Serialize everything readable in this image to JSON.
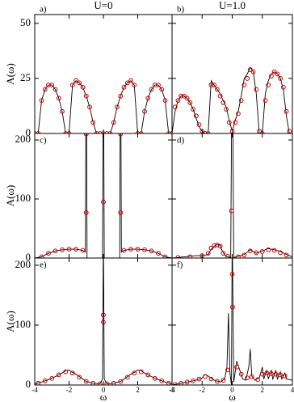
{
  "chart_data": [
    {
      "type": "line",
      "header": "U=0",
      "title": "a)",
      "ylabel": "A(ω)",
      "xlim": [
        -4,
        4
      ],
      "xticks": [
        -4,
        -2,
        0,
        2,
        4
      ],
      "ylim": [
        0,
        54
      ],
      "yticks": [
        0,
        25,
        50
      ],
      "series": [
        {
          "style": "line",
          "color": "#000000",
          "x": [
            -4,
            -3.8,
            -3.6,
            -3.4,
            -3.2,
            -3.0,
            -2.8,
            -2.6,
            -2.4,
            -2.2,
            -2.0,
            -1.8,
            -1.6,
            -1.4,
            -1.2,
            -1.0,
            -0.8,
            -0.6,
            -0.4,
            -0.2,
            0,
            0.2,
            0.4,
            0.6,
            0.8,
            1.0,
            1.2,
            1.4,
            1.6,
            1.8,
            2.0,
            2.2,
            2.4,
            2.6,
            2.8,
            3.0,
            3.2,
            3.4,
            3.6,
            3.8,
            4
          ],
          "values": [
            0,
            0,
            15,
            20,
            22,
            22,
            20,
            16,
            10,
            0,
            0,
            22,
            24,
            23,
            21,
            17,
            12,
            5,
            0,
            0,
            0,
            0,
            0,
            5,
            12,
            17,
            21,
            23,
            24,
            22,
            0,
            0,
            10,
            16,
            20,
            22,
            22,
            20,
            15,
            0,
            0
          ]
        },
        {
          "style": "markers",
          "color": "#cc0000",
          "x": [
            -4,
            -3.8,
            -3.6,
            -3.4,
            -3.2,
            -3.0,
            -2.8,
            -2.6,
            -2.4,
            -2.2,
            -2.0,
            -1.8,
            -1.6,
            -1.4,
            -1.2,
            -1.0,
            -0.8,
            -0.6,
            -0.4,
            -0.2,
            0,
            0.2,
            0.4,
            0.6,
            0.8,
            1.0,
            1.2,
            1.4,
            1.6,
            1.8,
            2.0,
            2.2,
            2.4,
            2.6,
            2.8,
            3.0,
            3.2,
            3.4,
            3.6,
            3.8,
            4
          ],
          "values": [
            0,
            0,
            15,
            20,
            22,
            22,
            20,
            16,
            10,
            0,
            0,
            22,
            24,
            23,
            21,
            17,
            12,
            5,
            0,
            0,
            0,
            0,
            0,
            5,
            12,
            17,
            21,
            23,
            24,
            22,
            0,
            0,
            10,
            16,
            20,
            22,
            22,
            20,
            15,
            0,
            0
          ]
        }
      ]
    },
    {
      "type": "line",
      "header": "U=1.0",
      "title": "b)",
      "xlim": [
        -4,
        4
      ],
      "xticks": [
        -4,
        -2,
        0,
        2,
        4
      ],
      "ylim": [
        0,
        54
      ],
      "yticks": [
        0,
        25,
        50
      ],
      "series": [
        {
          "style": "line",
          "color": "#000000",
          "x": [
            -4,
            -3.8,
            -3.6,
            -3.4,
            -3.2,
            -3.0,
            -2.8,
            -2.6,
            -2.4,
            -2.2,
            -2.0,
            -1.8,
            -1.6,
            -1.4,
            -1.2,
            -1.0,
            -0.8,
            -0.6,
            -0.4,
            -0.2,
            0,
            0.2,
            0.4,
            0.6,
            0.8,
            1.0,
            1.2,
            1.4,
            1.6,
            1.8,
            2.0,
            2.2,
            2.4,
            2.6,
            2.8,
            3.0,
            3.2,
            3.4,
            3.6,
            3.8,
            4
          ],
          "values": [
            0,
            10,
            15,
            17,
            17,
            16,
            14,
            11,
            7,
            3,
            1,
            0,
            0,
            24,
            22,
            20,
            18,
            15,
            12,
            6,
            1,
            6,
            10,
            17,
            25,
            27,
            30,
            28,
            18,
            0,
            0,
            18,
            24,
            27,
            28,
            27,
            25,
            20,
            8,
            0,
            0
          ]
        },
        {
          "style": "markers",
          "color": "#cc0000",
          "x": [
            -3.8,
            -3.6,
            -3.4,
            -3.2,
            -3.0,
            -2.8,
            -2.6,
            -2.4,
            -2.2,
            -2.0,
            -1.8,
            -1.6,
            -1.4,
            -1.2,
            -1.0,
            -0.8,
            -0.6,
            -0.4,
            -0.2,
            0,
            0.2,
            0.4,
            0.6,
            0.8,
            1.0,
            1.2,
            1.4,
            1.6,
            1.8,
            2.0,
            2.2,
            2.4,
            2.6,
            2.8,
            3.0,
            3.2,
            3.4,
            3.6,
            3.8
          ],
          "values": [
            12,
            15,
            17,
            17,
            16,
            14,
            11,
            8,
            4,
            1,
            0,
            0,
            22,
            22,
            20,
            17,
            14,
            11,
            5,
            1,
            5,
            9,
            15,
            22,
            25,
            29,
            28,
            20,
            1,
            0,
            15,
            22,
            26,
            28,
            27,
            25,
            21,
            10,
            1
          ]
        }
      ]
    },
    {
      "type": "line",
      "title": "c)",
      "ylabel": "A(ω)",
      "xlim": [
        -4,
        4
      ],
      "xticks": [
        -4,
        -2,
        0,
        2,
        4
      ],
      "ylim": [
        0,
        211
      ],
      "yticks": [
        0,
        100,
        200
      ],
      "series": [
        {
          "style": "line",
          "color": "#000000",
          "x": [
            -4,
            -3.6,
            -3.2,
            -2.8,
            -2.4,
            -2.0,
            -1.6,
            -1.2,
            -1.05,
            -1.0,
            -0.95,
            -0.05,
            0,
            0.05,
            0.95,
            1.0,
            1.05,
            1.2,
            1.6,
            2.0,
            2.4,
            2.8,
            3.2,
            3.6,
            4
          ],
          "values": [
            0,
            2,
            8,
            12,
            14,
            15,
            15,
            13,
            10,
            400,
            0,
            0,
            400,
            0,
            0,
            400,
            10,
            13,
            15,
            15,
            14,
            12,
            8,
            2,
            0
          ]
        },
        {
          "style": "markers",
          "color": "#cc0000",
          "x": [
            -3.6,
            -3.2,
            -2.8,
            -2.4,
            -2.0,
            -1.6,
            -1.2,
            -1,
            -1,
            0,
            1,
            1,
            1.2,
            1.6,
            2.0,
            2.4,
            2.8,
            3.2,
            3.6
          ],
          "values": [
            2,
            8,
            12,
            14,
            15,
            15,
            13,
            210,
            77,
            95,
            210,
            77,
            13,
            15,
            15,
            14,
            12,
            8,
            2
          ]
        }
      ]
    },
    {
      "type": "line",
      "title": "d)",
      "xlim": [
        -4,
        4
      ],
      "xticks": [
        -4,
        -2,
        0,
        2,
        4
      ],
      "ylim": [
        0,
        211
      ],
      "yticks": [
        0,
        100,
        200
      ],
      "series": [
        {
          "style": "line",
          "color": "#000000",
          "x": [
            -4,
            -3.6,
            -3.2,
            -2.8,
            -2.4,
            -2.0,
            -1.6,
            -1.4,
            -1.2,
            -1.0,
            -0.8,
            -0.7,
            -0.5,
            -0.3,
            -0.1,
            0,
            0.1,
            0.4,
            0.8,
            1.0,
            1.2,
            1.4,
            1.6,
            2.0,
            2.4,
            2.8,
            3.2,
            3.6,
            4
          ],
          "values": [
            0,
            1,
            2,
            3,
            4,
            4,
            6,
            15,
            20,
            23,
            22,
            14,
            5,
            2,
            1,
            400,
            1,
            3,
            6,
            10,
            14,
            11,
            8,
            12,
            16,
            14,
            11,
            6,
            2
          ]
        },
        {
          "style": "markers",
          "color": "#cc0000",
          "x": [
            -3.6,
            -2.8,
            -2.0,
            -1.6,
            -1.4,
            -1.2,
            -1.0,
            -0.8,
            -0.6,
            -0.3,
            -0.05,
            0.4,
            0.8,
            1.2,
            1.6,
            2.0,
            2.4,
            2.8,
            3.2,
            3.6
          ],
          "values": [
            1,
            2,
            4,
            8,
            17,
            21,
            22,
            20,
            8,
            3,
            80,
            2,
            5,
            12,
            9,
            11,
            14,
            13,
            9,
            5
          ]
        }
      ]
    },
    {
      "type": "line",
      "title": "e)",
      "ylabel": "A(ω)",
      "xlabel": "ω",
      "xlim": [
        -4,
        4
      ],
      "xticks": [
        -4,
        -2,
        0,
        2,
        4
      ],
      "ylim": [
        0,
        212
      ],
      "yticks": [
        0,
        100,
        200
      ],
      "series": [
        {
          "style": "line",
          "color": "#000000",
          "x": [
            -4,
            -3.6,
            -3.2,
            -2.8,
            -2.4,
            -2.2,
            -2.0,
            -1.8,
            -1.6,
            -1.4,
            -1.2,
            -1.0,
            -0.6,
            -0.2,
            -0.05,
            0,
            0.05,
            0.2,
            0.6,
            1.0,
            1.2,
            1.4,
            1.6,
            1.8,
            2.0,
            2.2,
            2.4,
            2.8,
            3.2,
            3.6,
            4
          ],
          "values": [
            2,
            5,
            9,
            14,
            20,
            24,
            25,
            21,
            18,
            14,
            10,
            6,
            3,
            2,
            10,
            260,
            10,
            2,
            3,
            6,
            10,
            14,
            18,
            21,
            25,
            24,
            20,
            14,
            9,
            5,
            2
          ]
        },
        {
          "style": "markers",
          "color": "#cc0000",
          "x": [
            -3.8,
            -3.4,
            -3.0,
            -2.6,
            -2.2,
            -1.8,
            -1.4,
            -1.0,
            -0.6,
            -0.2,
            0,
            0,
            0.2,
            0.6,
            1.0,
            1.4,
            1.8,
            2.2,
            2.6,
            3.0,
            3.4,
            3.8
          ],
          "values": [
            3,
            7,
            11,
            17,
            22,
            20,
            13,
            6,
            3,
            2,
            117,
            105,
            2,
            3,
            6,
            13,
            20,
            22,
            17,
            11,
            7,
            3
          ]
        }
      ]
    },
    {
      "type": "line",
      "title": "f)",
      "xlabel": "ω",
      "xlim": [
        -4,
        4
      ],
      "xticks": [
        -4,
        -2,
        0,
        2,
        4
      ],
      "ylim": [
        0,
        212
      ],
      "yticks": [
        0,
        100,
        200
      ],
      "series": [
        {
          "style": "line",
          "color": "#000000",
          "x": [
            -4,
            -3.6,
            -3.2,
            -2.8,
            -2.4,
            -2.0,
            -1.8,
            -1.6,
            -1.2,
            -0.8,
            -0.5,
            -0.35,
            -0.25,
            -0.15,
            -0.05,
            0,
            0.1,
            0.3,
            0.5,
            0.7,
            0.9,
            1.1,
            1.2,
            1.3,
            1.5,
            1.8,
            2.0,
            2.1,
            2.3,
            2.4,
            2.6,
            2.7,
            2.9,
            3.0,
            3.2,
            3.3,
            3.5,
            3.6,
            4
          ],
          "values": [
            0,
            2,
            4,
            6,
            8,
            12,
            18,
            15,
            8,
            5,
            10,
            30,
            120,
            20,
            0,
            260,
            5,
            40,
            25,
            10,
            8,
            30,
            60,
            15,
            8,
            12,
            30,
            10,
            25,
            10,
            25,
            10,
            24,
            10,
            22,
            10,
            20,
            10,
            8
          ]
        },
        {
          "style": "markers",
          "color": "#cc0000",
          "x": [
            -3.8,
            -3.4,
            -3.0,
            -2.6,
            -2.2,
            -1.8,
            -1.4,
            -1.0,
            -0.6,
            -0.3,
            0,
            0.02,
            0.3,
            0.6,
            1.0,
            1.3,
            1.7,
            2.0,
            2.3,
            2.6,
            2.9,
            3.2,
            3.5
          ],
          "values": [
            1,
            3,
            5,
            7,
            10,
            14,
            10,
            6,
            8,
            25,
            185,
            130,
            30,
            18,
            12,
            14,
            9,
            18,
            20,
            19,
            18,
            17,
            15
          ]
        }
      ]
    }
  ]
}
